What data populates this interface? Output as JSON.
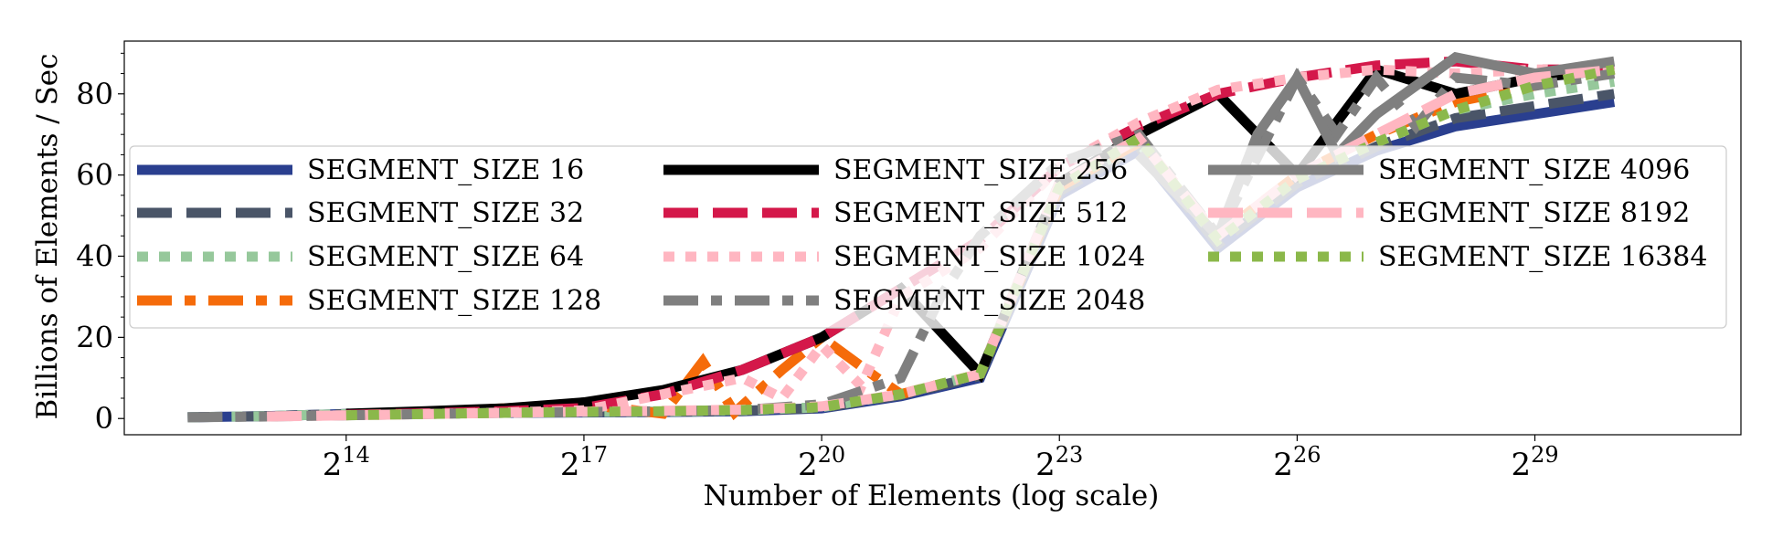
{
  "chart_data": {
    "type": "line",
    "title": "",
    "xlabel": "Number of Elements (log scale)",
    "ylabel": "Billions of Elements / Sec",
    "x_scale": "log2",
    "xlim_log2": [
      11.2,
      31.6
    ],
    "ylim": [
      -4,
      93
    ],
    "x_ticks": [
      {
        "exp": 14,
        "base": "2",
        "sup": "14"
      },
      {
        "exp": 17,
        "base": "2",
        "sup": "17"
      },
      {
        "exp": 20,
        "base": "2",
        "sup": "20"
      },
      {
        "exp": 23,
        "base": "2",
        "sup": "23"
      },
      {
        "exp": 26,
        "base": "2",
        "sup": "26"
      },
      {
        "exp": 29,
        "base": "2",
        "sup": "29"
      }
    ],
    "y_ticks": [
      0,
      20,
      40,
      60,
      80
    ],
    "y_minor_ticks": [
      5,
      10,
      15,
      25,
      30,
      35,
      45,
      50,
      55,
      65,
      70,
      75,
      85,
      90
    ],
    "grid": false,
    "legend": {
      "placement": "center",
      "columns": 3
    },
    "series": [
      {
        "name": "SEGMENT_SIZE 16",
        "color": "#2a3f8f",
        "style": "solid",
        "points": [
          [
            12,
            0.3
          ],
          [
            13,
            0.6
          ],
          [
            14,
            1.1
          ],
          [
            15,
            1.3
          ],
          [
            16,
            1.4
          ],
          [
            17,
            1.5
          ],
          [
            18,
            1.6
          ],
          [
            19,
            1.8
          ],
          [
            20,
            2.5
          ],
          [
            21,
            5.5
          ],
          [
            22,
            10
          ],
          [
            23,
            55
          ],
          [
            24,
            66
          ],
          [
            25,
            42
          ],
          [
            26,
            57
          ],
          [
            27,
            66
          ],
          [
            28,
            72
          ],
          [
            29,
            75
          ],
          [
            30,
            78
          ]
        ]
      },
      {
        "name": "SEGMENT_SIZE 32",
        "color": "#4a5568",
        "style": "dash",
        "points": [
          [
            12,
            0.3
          ],
          [
            13,
            0.6
          ],
          [
            14,
            1.1
          ],
          [
            15,
            1.4
          ],
          [
            16,
            1.5
          ],
          [
            17,
            1.6
          ],
          [
            18,
            1.7
          ],
          [
            19,
            1.9
          ],
          [
            20,
            2.6
          ],
          [
            21,
            5.8
          ],
          [
            22,
            10.5
          ],
          [
            23,
            56
          ],
          [
            24,
            67
          ],
          [
            25,
            43
          ],
          [
            26,
            58
          ],
          [
            27,
            67
          ],
          [
            28,
            74
          ],
          [
            29,
            77
          ],
          [
            30,
            80
          ]
        ]
      },
      {
        "name": "SEGMENT_SIZE 64",
        "color": "#96c89b",
        "style": "dot",
        "points": [
          [
            12,
            0.3
          ],
          [
            13,
            0.6
          ],
          [
            14,
            1.1
          ],
          [
            15,
            1.4
          ],
          [
            16,
            1.5
          ],
          [
            17,
            1.6
          ],
          [
            18,
            1.7
          ],
          [
            19,
            2
          ],
          [
            20,
            2.8
          ],
          [
            21,
            6
          ],
          [
            22,
            11
          ],
          [
            23,
            57
          ],
          [
            24,
            68
          ],
          [
            25,
            44
          ],
          [
            26,
            59
          ],
          [
            27,
            68
          ],
          [
            28,
            76
          ],
          [
            29,
            80
          ],
          [
            30,
            83
          ]
        ]
      },
      {
        "name": "SEGMENT_SIZE 128",
        "color": "#f56b0a",
        "style": "dashdot",
        "points": [
          [
            14,
            1
          ],
          [
            15,
            1.6
          ],
          [
            16,
            2.5
          ],
          [
            17,
            3.5
          ],
          [
            18,
            1.2
          ],
          [
            18.5,
            14
          ],
          [
            18.9,
            1.5
          ],
          [
            19.5,
            12
          ],
          [
            20,
            20
          ],
          [
            20.7,
            10
          ],
          [
            21,
            6
          ],
          [
            22,
            11
          ],
          [
            23,
            57
          ],
          [
            24,
            68
          ],
          [
            25,
            45
          ],
          [
            26,
            60
          ],
          [
            27,
            70
          ],
          [
            28,
            78
          ],
          [
            29,
            82
          ],
          [
            30,
            86
          ]
        ]
      },
      {
        "name": "SEGMENT_SIZE 256",
        "color": "#000000",
        "style": "solid",
        "points": [
          [
            14,
            1.2
          ],
          [
            15,
            1.8
          ],
          [
            16,
            2.5
          ],
          [
            17,
            4
          ],
          [
            18,
            7
          ],
          [
            19,
            12
          ],
          [
            20,
            20
          ],
          [
            21,
            32
          ],
          [
            22,
            11
          ],
          [
            23,
            58
          ],
          [
            24,
            70
          ],
          [
            25,
            80
          ],
          [
            26,
            60
          ],
          [
            27,
            86
          ],
          [
            28,
            80
          ],
          [
            29,
            84
          ],
          [
            30,
            86
          ]
        ]
      },
      {
        "name": "SEGMENT_SIZE 512",
        "color": "#d4184a",
        "style": "dash",
        "points": [
          [
            14,
            0.9
          ],
          [
            15,
            1.3
          ],
          [
            16,
            1.8
          ],
          [
            17,
            2.6
          ],
          [
            18,
            6
          ],
          [
            19,
            12
          ],
          [
            20,
            20
          ],
          [
            21,
            32
          ],
          [
            22,
            44
          ],
          [
            23,
            62
          ],
          [
            24,
            72
          ],
          [
            25,
            80
          ],
          [
            26,
            84
          ],
          [
            27,
            87
          ],
          [
            28,
            88
          ],
          [
            29,
            86
          ],
          [
            30,
            86
          ]
        ]
      },
      {
        "name": "SEGMENT_SIZE 1024",
        "color": "#ffb6c1",
        "style": "dot",
        "points": [
          [
            13,
            0.5
          ],
          [
            14,
            0.8
          ],
          [
            15,
            1.1
          ],
          [
            16,
            1.5
          ],
          [
            17,
            2
          ],
          [
            18,
            6
          ],
          [
            19,
            10
          ],
          [
            19.5,
            5
          ],
          [
            20,
            18
          ],
          [
            20.5,
            8
          ],
          [
            21,
            30
          ],
          [
            22,
            42
          ],
          [
            23,
            62
          ],
          [
            24,
            73
          ],
          [
            25,
            81
          ],
          [
            26,
            84
          ],
          [
            27,
            86
          ],
          [
            28,
            85
          ],
          [
            29,
            86
          ],
          [
            30,
            86
          ]
        ]
      },
      {
        "name": "SEGMENT_SIZE 2048",
        "color": "#7f7f7f",
        "style": "dashdot",
        "points": [
          [
            12,
            0.3
          ],
          [
            13,
            0.5
          ],
          [
            14,
            0.8
          ],
          [
            15,
            1.1
          ],
          [
            16,
            1.4
          ],
          [
            17,
            1.6
          ],
          [
            18,
            1.8
          ],
          [
            19,
            2.1
          ],
          [
            20,
            3.5
          ],
          [
            21,
            10
          ],
          [
            21.5,
            30
          ],
          [
            22,
            45
          ],
          [
            23,
            63
          ],
          [
            24,
            70
          ],
          [
            25,
            45
          ],
          [
            26,
            84
          ],
          [
            26.5,
            70
          ],
          [
            27,
            84
          ],
          [
            27.5,
            72
          ],
          [
            28,
            84
          ],
          [
            29,
            82
          ],
          [
            30,
            85
          ]
        ]
      },
      {
        "name": "SEGMENT_SIZE 4096",
        "color": "#7f7f7f",
        "style": "solid",
        "points": [
          [
            24,
            65
          ],
          [
            25,
            45
          ],
          [
            25.5,
            70
          ],
          [
            26,
            84
          ],
          [
            26.5,
            65
          ],
          [
            27,
            75
          ],
          [
            28,
            89
          ],
          [
            29,
            85
          ],
          [
            30,
            88
          ]
        ]
      },
      {
        "name": "SEGMENT_SIZE 8192",
        "color": "#ffb6c1",
        "style": "dash",
        "points": [
          [
            13,
            0.5
          ],
          [
            14,
            0.8
          ],
          [
            15,
            1.1
          ],
          [
            16,
            1.4
          ],
          [
            17,
            1.7
          ],
          [
            18,
            1.9
          ],
          [
            19,
            2.2
          ],
          [
            20,
            3
          ],
          [
            21,
            6
          ],
          [
            22,
            11
          ],
          [
            23,
            58
          ],
          [
            24,
            69
          ],
          [
            25,
            45
          ],
          [
            26,
            60
          ],
          [
            27,
            70
          ],
          [
            28,
            80
          ],
          [
            29,
            84
          ],
          [
            30,
            86
          ]
        ]
      },
      {
        "name": "SEGMENT_SIZE 16384",
        "color": "#8bb84a",
        "style": "dot",
        "points": [
          [
            14,
            0.8
          ],
          [
            15,
            1.1
          ],
          [
            16,
            1.4
          ],
          [
            17,
            1.6
          ],
          [
            18,
            1.8
          ],
          [
            19,
            2.1
          ],
          [
            20,
            2.8
          ],
          [
            21,
            6
          ],
          [
            22,
            11
          ],
          [
            23,
            57
          ],
          [
            24,
            69
          ],
          [
            25,
            44
          ],
          [
            26,
            59
          ],
          [
            27,
            68
          ],
          [
            28,
            76
          ],
          [
            29,
            82
          ],
          [
            30,
            86
          ]
        ]
      }
    ]
  }
}
